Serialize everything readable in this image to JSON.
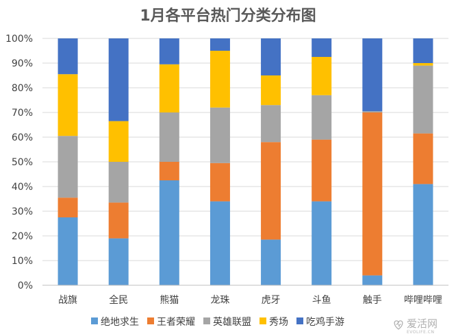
{
  "chart_data": {
    "type": "bar",
    "stacked": true,
    "title": "1月各平台热门分类分布图",
    "xlabel": "",
    "ylabel": "",
    "ylim": [
      0,
      100
    ],
    "y_ticks": [
      "0%",
      "10%",
      "20%",
      "30%",
      "40%",
      "50%",
      "60%",
      "70%",
      "80%",
      "90%",
      "100%"
    ],
    "categories": [
      "战旗",
      "全民",
      "熊猫",
      "龙珠",
      "虎牙",
      "斗鱼",
      "触手",
      "哔哩哔哩"
    ],
    "series": [
      {
        "name": "绝地求生",
        "color": "#5b9bd5",
        "values": [
          27.5,
          19,
          42.5,
          34,
          18.5,
          34,
          4,
          41
        ]
      },
      {
        "name": "王者荣耀",
        "color": "#ed7d31",
        "values": [
          8,
          14.5,
          7.5,
          15.5,
          39.5,
          25,
          66,
          20.5
        ]
      },
      {
        "name": "英雄联盟",
        "color": "#a5a5a5",
        "values": [
          25,
          16.5,
          20,
          22.5,
          15,
          18,
          0.5,
          27.5
        ]
      },
      {
        "name": "秀场",
        "color": "#ffc000",
        "values": [
          25,
          16.5,
          19.5,
          23,
          12,
          15.5,
          0,
          1
        ]
      },
      {
        "name": "吃鸡手游",
        "color": "#4472c4",
        "values": [
          14.5,
          33.5,
          10.5,
          5,
          15,
          7.5,
          29.5,
          10
        ]
      }
    ],
    "grid": true,
    "legend_position": "bottom"
  },
  "watermark": {
    "text": "爱活网",
    "subtext": "EVOLIFE.CN",
    "icon": "heart-logo-icon"
  },
  "colors": {
    "grid": "#d9d9d9",
    "axis": "#bfbfbf",
    "title": "#595959"
  }
}
